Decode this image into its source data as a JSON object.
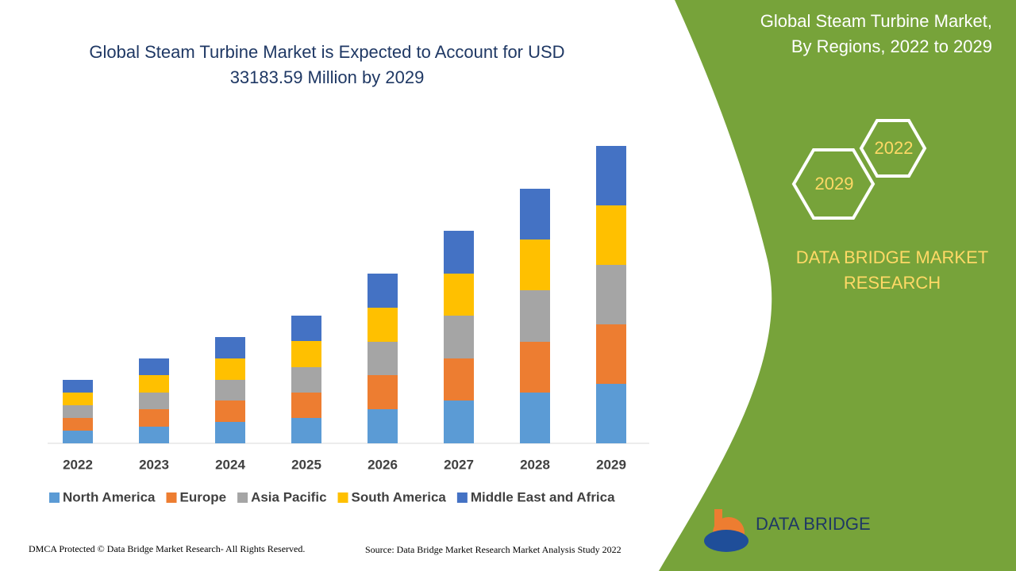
{
  "chart_data": {
    "type": "stacked-bar",
    "title": [
      "Global Steam Turbine Market is Expected to Account for USD",
      "33183.59 Million by 2029"
    ],
    "categories": [
      "2022",
      "2023",
      "2024",
      "2025",
      "2026",
      "2027",
      "2028",
      "2029"
    ],
    "series": [
      {
        "name": "North America",
        "color": "#5b9bd5",
        "values": [
          16,
          21,
          27,
          32,
          43,
          54,
          64,
          75
        ]
      },
      {
        "name": "Europe",
        "color": "#ed7d31",
        "values": [
          16,
          22,
          27,
          32,
          43,
          53,
          64,
          75
        ]
      },
      {
        "name": "Asia Pacific",
        "color": "#a5a5a5",
        "values": [
          16,
          21,
          26,
          32,
          42,
          54,
          65,
          75
        ]
      },
      {
        "name": "South America",
        "color": "#ffc000",
        "values": [
          16,
          22,
          27,
          33,
          43,
          53,
          64,
          75
        ]
      },
      {
        "name": "Middle East and Africa",
        "color": "#4472c4",
        "values": [
          16,
          21,
          27,
          32,
          43,
          54,
          64,
          75
        ]
      }
    ],
    "ylim": [
      0,
      400
    ],
    "legend": "bottom"
  },
  "panel": {
    "title": [
      "Global Steam Turbine Market,",
      "By Regions, 2022 to 2029"
    ],
    "hexagons": [
      "2022",
      "2029"
    ],
    "brand": [
      "DATA BRIDGE MARKET",
      "RESEARCH"
    ],
    "logo": "DATA BRIDGE"
  },
  "footer": {
    "left": "DMCA Protected © Data Bridge Market Research- All Rights Reserved.",
    "right": "Source: Data Bridge Market Research Market Analysis Study 2022"
  }
}
